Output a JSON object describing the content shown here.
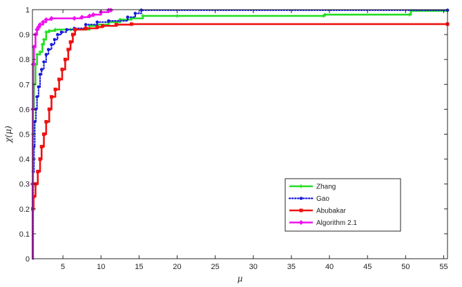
{
  "chart_data": {
    "type": "line",
    "title": "",
    "xlabel": "μ",
    "ylabel": "χ(μ)",
    "xlim": [
      1,
      55.5
    ],
    "ylim": [
      0,
      1
    ],
    "xticks": [
      5,
      10,
      15,
      20,
      25,
      30,
      35,
      40,
      45,
      50,
      55
    ],
    "yticks": [
      0,
      0.1,
      0.2,
      0.3,
      0.4,
      0.5,
      0.6,
      0.7,
      0.8,
      0.9,
      1
    ],
    "xtick_labels": [
      "5",
      "10",
      "15",
      "20",
      "25",
      "30",
      "35",
      "40",
      "45",
      "50",
      "55"
    ],
    "ytick_labels": [
      "0",
      "0.1",
      "0.2",
      "0.3",
      "0.4",
      "0.5",
      "0.6",
      "0.7",
      "0.8",
      "0.9",
      "1"
    ],
    "grid": false,
    "legend_position": "lower-right",
    "series": [
      {
        "name": "Zhang",
        "color": "#22dd22",
        "line_style": "solid",
        "marker": "cross",
        "points": [
          [
            1,
            0
          ],
          [
            1.05,
            0.5
          ],
          [
            1.1,
            0.6
          ],
          [
            1.2,
            0.7
          ],
          [
            1.4,
            0.78
          ],
          [
            1.6,
            0.82
          ],
          [
            2.0,
            0.83
          ],
          [
            2.3,
            0.86
          ],
          [
            2.5,
            0.88
          ],
          [
            2.8,
            0.91
          ],
          [
            3.2,
            0.915
          ],
          [
            4.0,
            0.92
          ],
          [
            6.0,
            0.92
          ],
          [
            8.5,
            0.935
          ],
          [
            9.5,
            0.94
          ],
          [
            11.0,
            0.95
          ],
          [
            12.5,
            0.96
          ],
          [
            14.0,
            0.965
          ],
          [
            15.5,
            0.975
          ],
          [
            20.0,
            0.975
          ],
          [
            39.2,
            0.975
          ],
          [
            39.4,
            0.98
          ],
          [
            50.5,
            0.98
          ],
          [
            50.7,
            0.995
          ],
          [
            55.5,
            0.995
          ]
        ]
      },
      {
        "name": "Gao",
        "color": "#1a1adc",
        "line_style": "dotted",
        "marker": "dot",
        "points": [
          [
            1,
            0
          ],
          [
            1.1,
            0.35
          ],
          [
            1.2,
            0.45
          ],
          [
            1.3,
            0.55
          ],
          [
            1.45,
            0.6
          ],
          [
            1.6,
            0.65
          ],
          [
            1.8,
            0.69
          ],
          [
            2.0,
            0.74
          ],
          [
            2.2,
            0.76
          ],
          [
            2.5,
            0.79
          ],
          [
            2.8,
            0.82
          ],
          [
            3.1,
            0.84
          ],
          [
            3.5,
            0.86
          ],
          [
            3.9,
            0.88
          ],
          [
            4.3,
            0.9
          ],
          [
            4.8,
            0.91
          ],
          [
            5.5,
            0.92
          ],
          [
            6.5,
            0.925
          ],
          [
            8.0,
            0.94
          ],
          [
            9.5,
            0.95
          ],
          [
            11.0,
            0.955
          ],
          [
            13.5,
            0.97
          ],
          [
            14.5,
            0.985
          ],
          [
            15.3,
            0.998
          ],
          [
            55.5,
            0.998
          ]
        ]
      },
      {
        "name": "Abubakar",
        "color": "#ee1111",
        "line_style": "solid",
        "marker": "square",
        "points": [
          [
            1,
            0
          ],
          [
            1.05,
            0.2
          ],
          [
            1.15,
            0.25
          ],
          [
            1.4,
            0.3
          ],
          [
            1.7,
            0.35
          ],
          [
            2.0,
            0.4
          ],
          [
            2.2,
            0.45
          ],
          [
            2.5,
            0.5
          ],
          [
            2.8,
            0.55
          ],
          [
            3.2,
            0.6
          ],
          [
            3.5,
            0.65
          ],
          [
            4.0,
            0.68
          ],
          [
            4.5,
            0.72
          ],
          [
            4.9,
            0.76
          ],
          [
            5.3,
            0.8
          ],
          [
            5.7,
            0.84
          ],
          [
            6.0,
            0.87
          ],
          [
            6.3,
            0.9
          ],
          [
            6.6,
            0.92
          ],
          [
            8.0,
            0.925
          ],
          [
            9.5,
            0.93
          ],
          [
            10.2,
            0.935
          ],
          [
            12.0,
            0.94
          ],
          [
            14.0,
            0.942
          ],
          [
            55.5,
            0.942
          ]
        ]
      },
      {
        "name": "Algorithm 2.1",
        "color": "#ee11ee",
        "line_style": "solid",
        "marker": "diamond",
        "points": [
          [
            1,
            0
          ],
          [
            1.02,
            0.3
          ],
          [
            1.05,
            0.6
          ],
          [
            1.1,
            0.78
          ],
          [
            1.2,
            0.85
          ],
          [
            1.4,
            0.9
          ],
          [
            1.6,
            0.92
          ],
          [
            1.8,
            0.93
          ],
          [
            2.0,
            0.94
          ],
          [
            2.4,
            0.95
          ],
          [
            2.8,
            0.96
          ],
          [
            3.5,
            0.965
          ],
          [
            6.5,
            0.965
          ],
          [
            7.5,
            0.97
          ],
          [
            8.5,
            0.975
          ],
          [
            9.0,
            0.98
          ],
          [
            10.0,
            0.99
          ],
          [
            11.0,
            0.998
          ],
          [
            11.3,
            0.998
          ]
        ]
      }
    ]
  }
}
